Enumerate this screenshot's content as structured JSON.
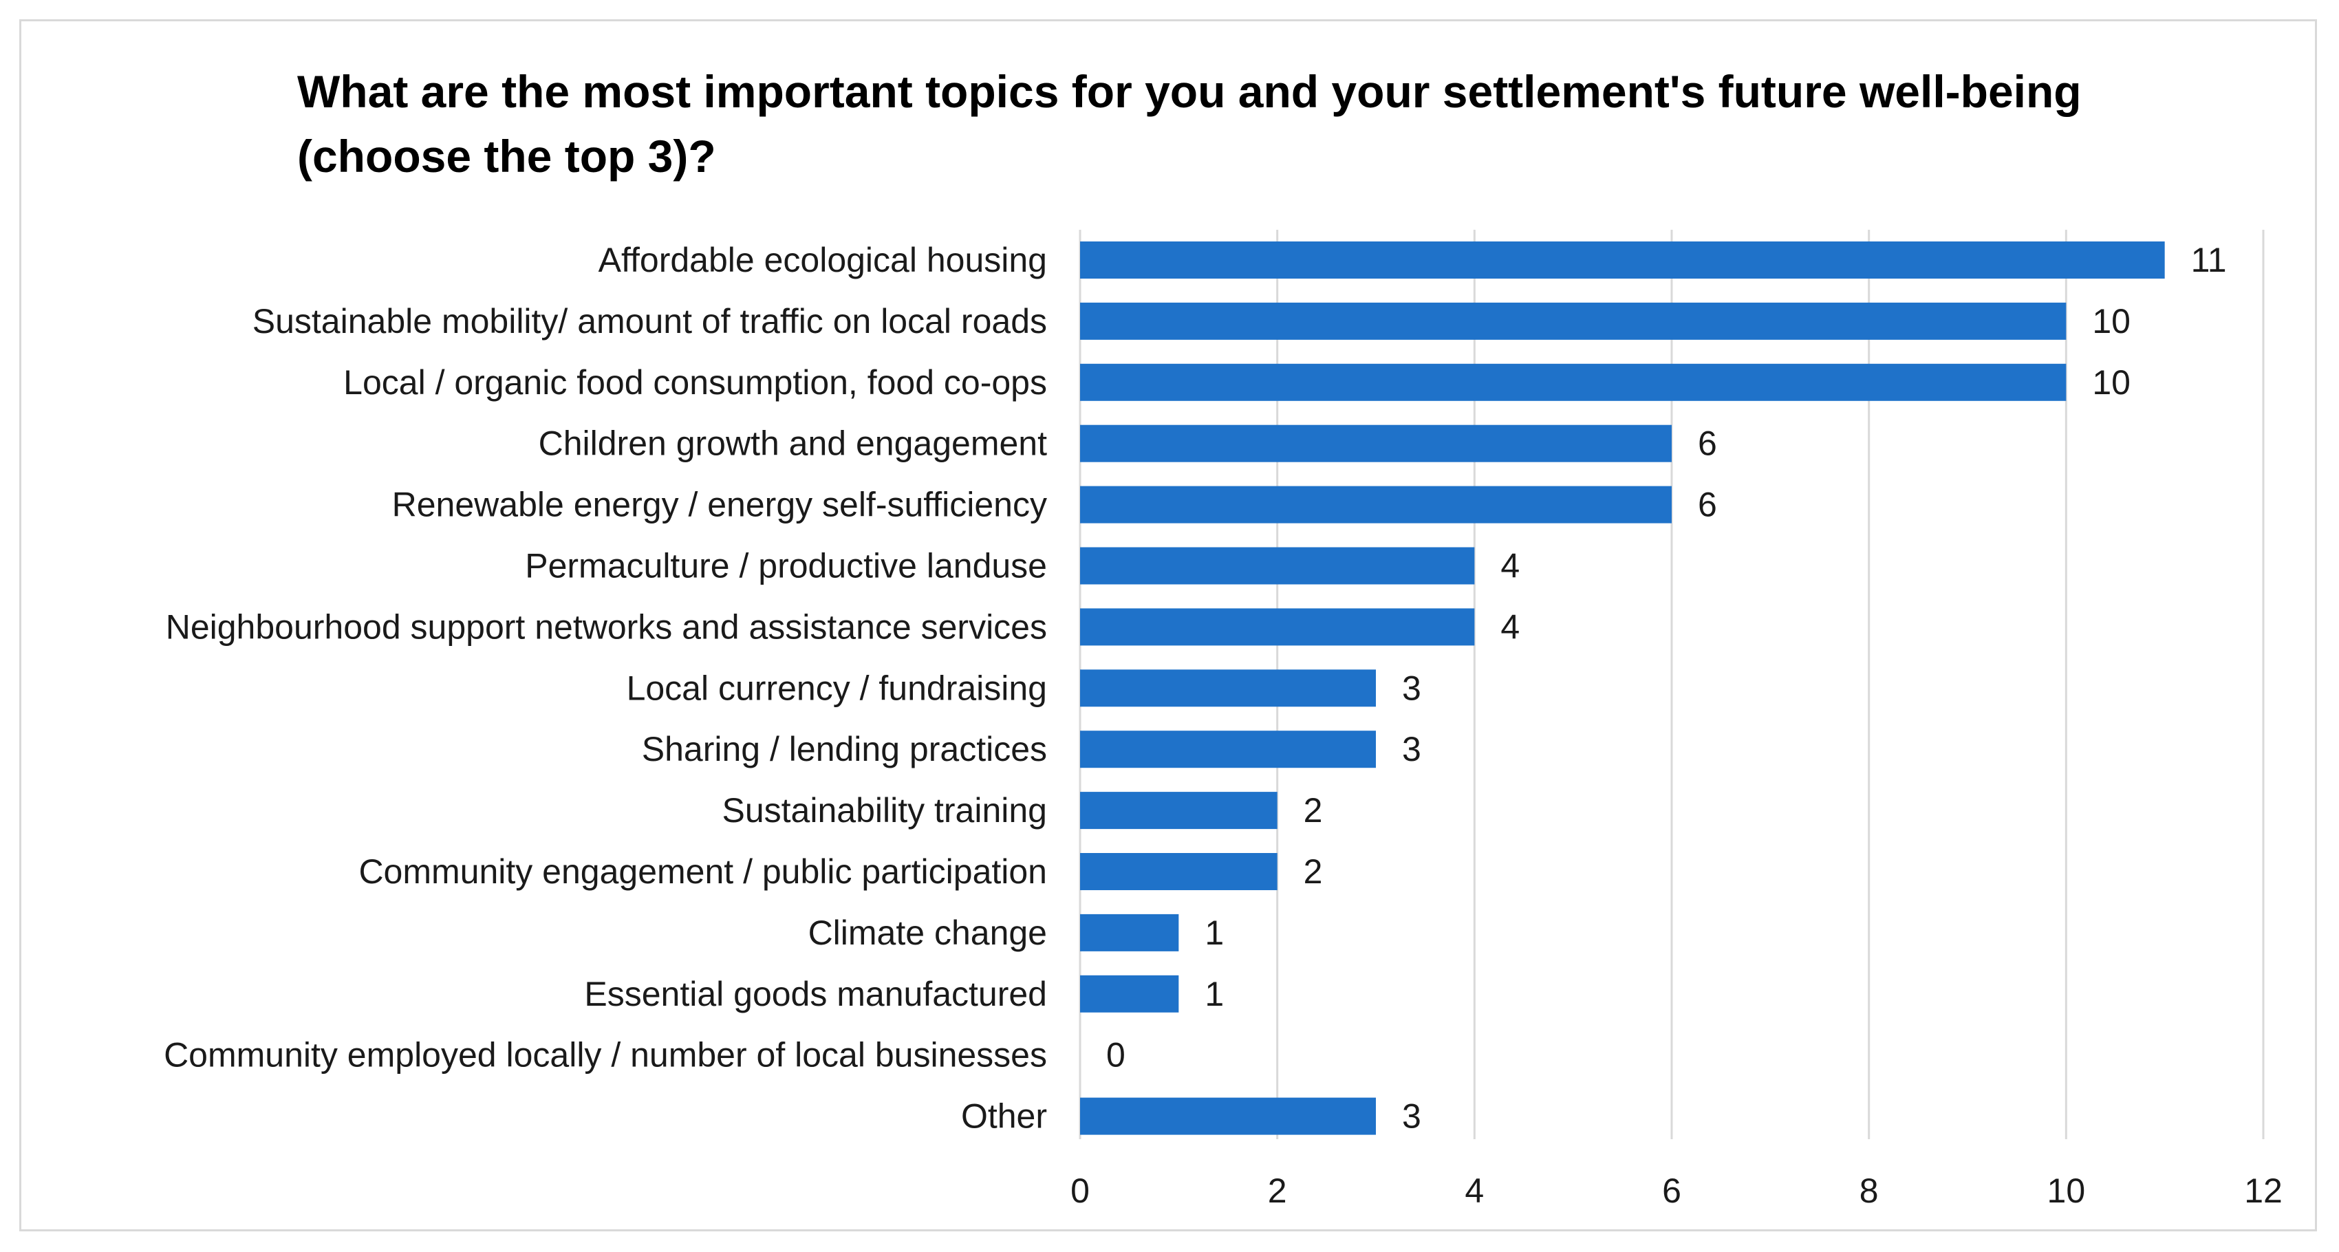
{
  "chart_data": {
    "type": "bar",
    "orientation": "horizontal",
    "title": "What are the most important topics for you and your settlement's future well-being (choose the top 3)?",
    "categories": [
      "Affordable ecological housing",
      "Sustainable mobility/ amount of traffic on local roads",
      "Local / organic food consumption, food co-ops",
      "Children growth and engagement",
      "Renewable energy / energy self-sufficiency",
      "Permaculture / productive landuse",
      "Neighbourhood support networks and assistance services",
      "Local currency / fundraising",
      "Sharing / lending practices",
      "Sustainability training",
      "Community engagement / public participation",
      "Climate change",
      "Essential goods manufactured",
      "Community employed locally / number of local businesses",
      "Other"
    ],
    "values": [
      11,
      10,
      10,
      6,
      6,
      4,
      4,
      3,
      3,
      2,
      2,
      1,
      1,
      0,
      3
    ],
    "xlim": [
      0,
      12
    ],
    "xticks": [
      0,
      2,
      4,
      6,
      8,
      10,
      12
    ],
    "xlabel": "",
    "ylabel": "",
    "grid": true,
    "legend": "none",
    "bar_color": "#1f72c9",
    "grid_color": "#d9d9d9"
  }
}
